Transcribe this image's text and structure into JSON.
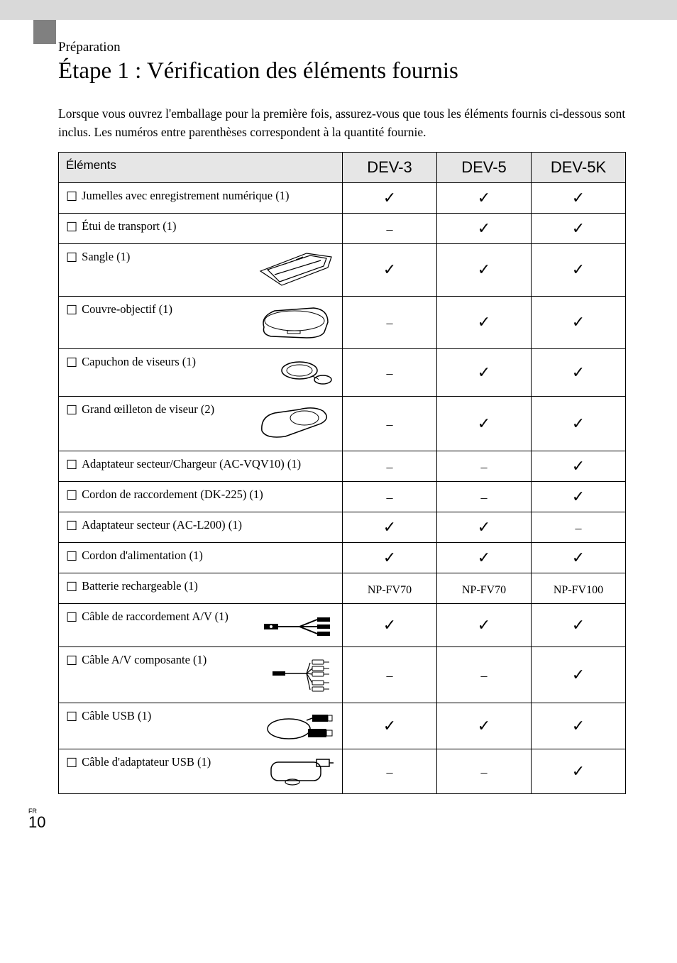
{
  "section_label": "Préparation",
  "title": "Étape 1 : Vérification des éléments fournis",
  "intro": "Lorsque vous ouvrez l'emballage pour la première fois, assurez-vous que tous les éléments fournis ci-dessous sont inclus. Les numéros entre parenthèses correspondent à la quantité fournie.",
  "table": {
    "headers": [
      "Éléments",
      "DEV-3",
      "DEV-5",
      "DEV-5K"
    ],
    "rows": [
      {
        "label": "Jumelles avec enregistrement numérique (1)",
        "icon": null,
        "vals": [
          "✓",
          "✓",
          "✓"
        ],
        "tall": false
      },
      {
        "label": "Étui de transport (1)",
        "icon": null,
        "vals": [
          "–",
          "✓",
          "✓"
        ],
        "tall": false
      },
      {
        "label": "Sangle (1)",
        "icon": "strap",
        "vals": [
          "✓",
          "✓",
          "✓"
        ],
        "tall": true
      },
      {
        "label": "Couvre-objectif (1)",
        "icon": "lenscover",
        "vals": [
          "–",
          "✓",
          "✓"
        ],
        "tall": true
      },
      {
        "label": "Capuchon de viseurs (1)",
        "icon": "vfcap",
        "vals": [
          "–",
          "✓",
          "✓"
        ],
        "tall": true
      },
      {
        "label": "Grand œilleton de viseur (2)",
        "icon": "eyecup",
        "vals": [
          "–",
          "✓",
          "✓"
        ],
        "tall": true
      },
      {
        "label": "Adaptateur secteur/Chargeur (AC-VQV10) (1)",
        "icon": null,
        "vals": [
          "–",
          "–",
          "✓"
        ],
        "tall": false
      },
      {
        "label": "Cordon de raccordement (DK-225) (1)",
        "icon": null,
        "vals": [
          "–",
          "–",
          "✓"
        ],
        "tall": false
      },
      {
        "label": "Adaptateur secteur (AC-L200) (1)",
        "icon": null,
        "vals": [
          "✓",
          "✓",
          "–"
        ],
        "tall": false
      },
      {
        "label": "Cordon d'alimentation (1)",
        "icon": null,
        "vals": [
          "✓",
          "✓",
          "✓"
        ],
        "tall": false
      },
      {
        "label": "Batterie rechargeable (1)",
        "icon": null,
        "vals": [
          "NP-FV70",
          "NP-FV70",
          "NP-FV100"
        ],
        "tall": false,
        "textvals": true
      },
      {
        "label": "Câble de raccordement A/V (1)",
        "icon": "avcable",
        "vals": [
          "✓",
          "✓",
          "✓"
        ],
        "tall": true
      },
      {
        "label": "Câble A/V composante (1)",
        "icon": "compcable",
        "vals": [
          "–",
          "–",
          "✓"
        ],
        "tall": true
      },
      {
        "label": "Câble USB (1)",
        "icon": "usbcable",
        "vals": [
          "✓",
          "✓",
          "✓"
        ],
        "tall": true
      },
      {
        "label": "Câble d'adaptateur USB (1)",
        "icon": "usbadapter",
        "vals": [
          "–",
          "–",
          "✓"
        ],
        "tall": true
      }
    ]
  },
  "colors": {
    "topbar": "#d9d9d9",
    "tab": "#808080",
    "header_bg": "#e6e6e6",
    "border": "#000000",
    "text": "#000000"
  },
  "page_number": {
    "lang": "FR",
    "num": "10"
  }
}
